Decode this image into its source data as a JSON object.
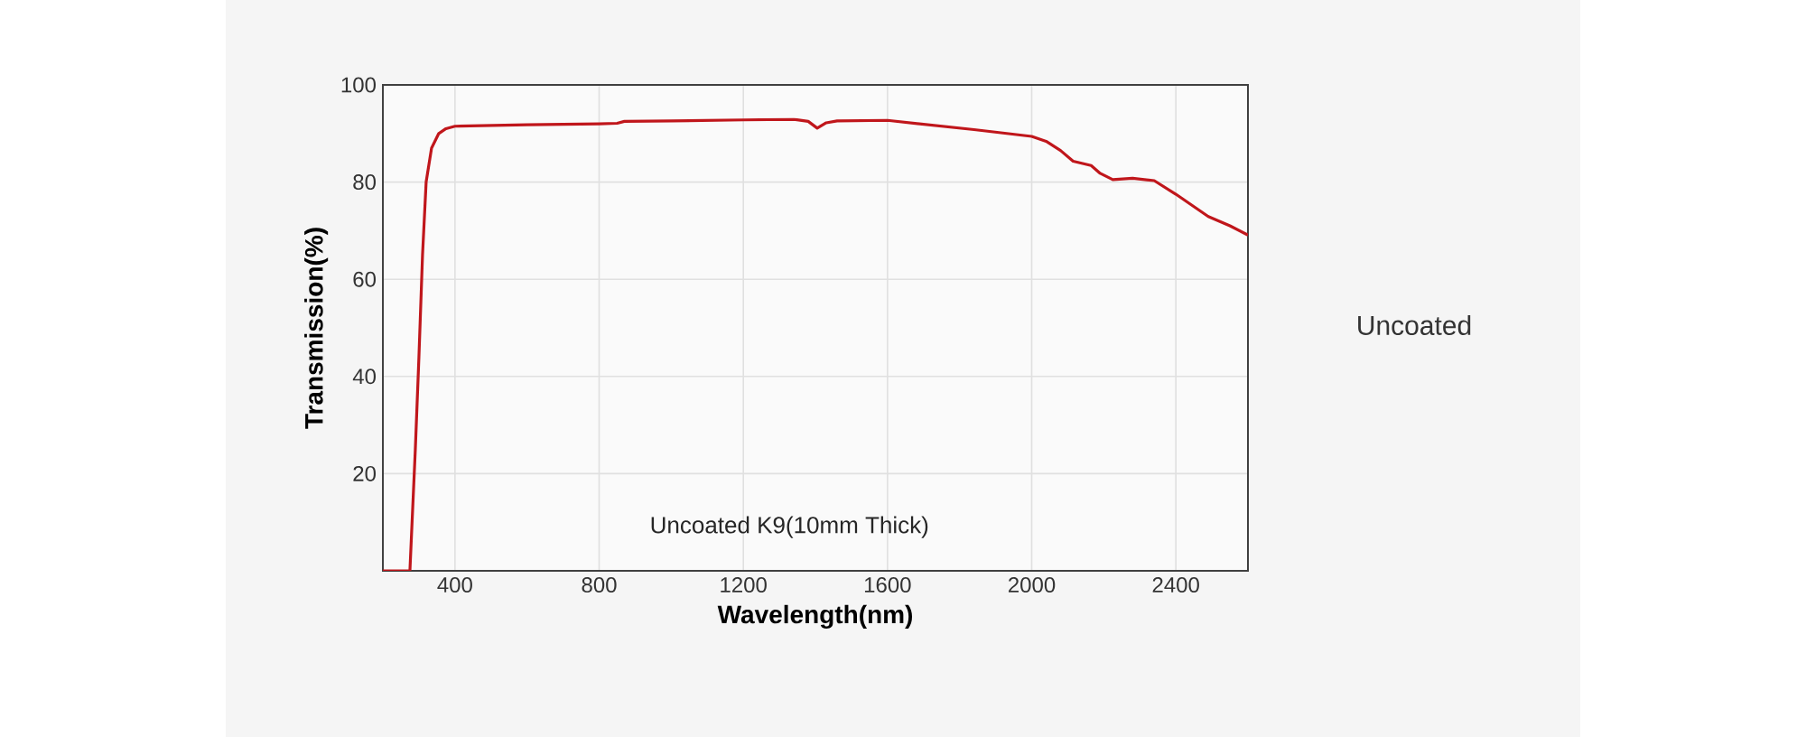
{
  "chart_data": {
    "type": "line",
    "xlabel": "Wavelength(nm)",
    "ylabel": "Transmission(%)",
    "annotations": [
      "Uncoated K9(10mm Thick)",
      "Uncoated"
    ],
    "x": [
      200,
      275,
      290,
      300,
      310,
      320,
      335,
      355,
      375,
      400,
      600,
      800,
      850,
      870,
      1000,
      1200,
      1340,
      1380,
      1405,
      1430,
      1460,
      1600,
      1840,
      2000,
      2040,
      2080,
      2115,
      2165,
      2190,
      2225,
      2280,
      2340,
      2400,
      2490,
      2550,
      2600
    ],
    "series": [
      {
        "color": "#c0161b",
        "values": [
          0,
          0,
          25,
          44,
          65,
          80,
          87,
          90,
          91,
          91.5,
          91.8,
          92,
          92.1,
          92.5,
          92.6,
          92.8,
          92.9,
          92.5,
          91.1,
          92.2,
          92.6,
          92.7,
          90.8,
          89.4,
          88.4,
          86.5,
          84.3,
          83.4,
          81.8,
          80.5,
          80.8,
          80.3,
          77.5,
          72.9,
          71,
          69.1
        ]
      }
    ],
    "xlim": [
      200,
      2600
    ],
    "ylim": [
      0,
      100
    ],
    "xticks": [
      400,
      800,
      1200,
      1600,
      2000,
      2400
    ],
    "yticks": [
      20,
      40,
      60,
      80,
      100
    ],
    "grid": true,
    "marker": "none",
    "line_style": "solid"
  }
}
